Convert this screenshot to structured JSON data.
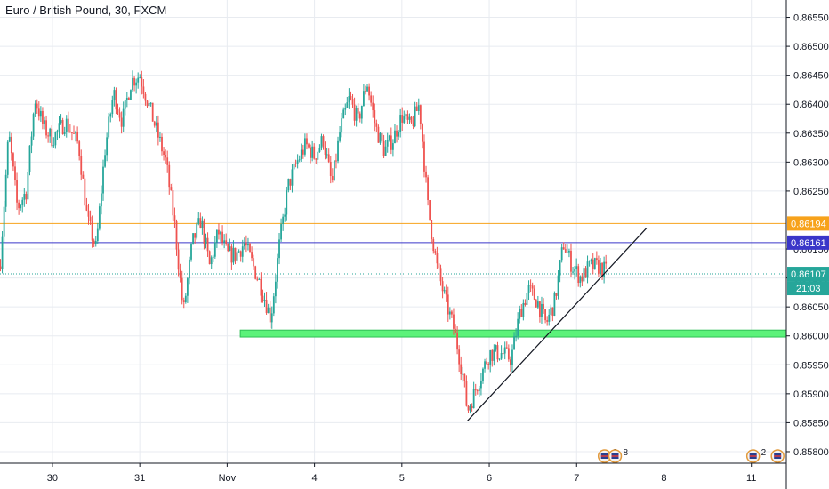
{
  "header": {
    "title": "Euro / British Pound, 30, FXCM"
  },
  "colors": {
    "up": "#26a69a",
    "down": "#ef5350",
    "grid": "#e8ebf0",
    "axis": "#131722",
    "orange_line": "#f7a21b",
    "blue_line": "#3a36c9",
    "green_zone": "#5cf27a",
    "current_price": "#26a69a",
    "trendline": "#131722"
  },
  "chart_data": {
    "type": "candlestick",
    "y_axis": {
      "min": 0.8578,
      "max": 0.8658,
      "ticks": [
        "0.86550",
        "0.86500",
        "0.86450",
        "0.86400",
        "0.86350",
        "0.86300",
        "0.86250",
        "0.86200",
        "0.86150",
        "0.86100",
        "0.86050",
        "0.86000",
        "0.85950",
        "0.85900",
        "0.85850",
        "0.85800"
      ],
      "tick_values": [
        0.8655,
        0.865,
        0.8645,
        0.864,
        0.8635,
        0.863,
        0.8625,
        0.862,
        0.8615,
        0.861,
        0.8605,
        0.86,
        0.8595,
        0.859,
        0.8585,
        0.858
      ]
    },
    "x_axis": {
      "labels": [
        {
          "text": "30",
          "t": 0.6
        },
        {
          "text": "31",
          "t": 1.6
        },
        {
          "text": "Nov",
          "t": 2.6
        },
        {
          "text": "4",
          "t": 3.6
        },
        {
          "text": "5",
          "t": 4.6
        },
        {
          "text": "6",
          "t": 5.6
        },
        {
          "text": "7",
          "t": 6.6
        },
        {
          "text": "8",
          "t": 7.6
        },
        {
          "text": "11",
          "t": 8.6
        }
      ],
      "range": [
        0,
        9.0
      ]
    },
    "horizontal_lines": [
      {
        "name": "resistance-orange",
        "price": 0.86194,
        "label": "0.86194",
        "style": "orange"
      },
      {
        "name": "resistance-blue",
        "price": 0.86161,
        "label": "0.86161",
        "style": "blue"
      }
    ],
    "current_price": {
      "price": 0.86107,
      "label": "0.86107",
      "countdown": "21:03"
    },
    "support_zone": {
      "price_low": 0.85998,
      "price_high": 0.8601,
      "t_start": 2.75,
      "t_end": 9.0
    },
    "trendline": {
      "t1": 5.35,
      "p1": 0.85853,
      "t2": 7.4,
      "p2": 0.86186
    },
    "events": [
      {
        "t": 6.92,
        "count": "2"
      },
      {
        "t": 7.04,
        "count": "8"
      },
      {
        "t": 8.62,
        "count": "2"
      },
      {
        "t": 8.9,
        "count": ""
      }
    ],
    "anchors": [
      {
        "t": 0.0,
        "p": 0.8612
      },
      {
        "t": 0.1,
        "p": 0.8635
      },
      {
        "t": 0.2,
        "p": 0.8622
      },
      {
        "t": 0.3,
        "p": 0.8625
      },
      {
        "t": 0.4,
        "p": 0.8641
      },
      {
        "t": 0.5,
        "p": 0.8636
      },
      {
        "t": 0.6,
        "p": 0.8634
      },
      {
        "t": 0.75,
        "p": 0.8637
      },
      {
        "t": 0.9,
        "p": 0.8633
      },
      {
        "t": 1.0,
        "p": 0.862
      },
      {
        "t": 1.1,
        "p": 0.8615
      },
      {
        "t": 1.2,
        "p": 0.8632
      },
      {
        "t": 1.3,
        "p": 0.8642
      },
      {
        "t": 1.4,
        "p": 0.8637
      },
      {
        "t": 1.5,
        "p": 0.8644
      },
      {
        "t": 1.6,
        "p": 0.8645
      },
      {
        "t": 1.7,
        "p": 0.864
      },
      {
        "t": 1.8,
        "p": 0.8635
      },
      {
        "t": 1.9,
        "p": 0.863
      },
      {
        "t": 2.0,
        "p": 0.8619
      },
      {
        "t": 2.1,
        "p": 0.8604
      },
      {
        "t": 2.2,
        "p": 0.8616
      },
      {
        "t": 2.3,
        "p": 0.862
      },
      {
        "t": 2.4,
        "p": 0.8612
      },
      {
        "t": 2.5,
        "p": 0.8618
      },
      {
        "t": 2.6,
        "p": 0.8614
      },
      {
        "t": 2.7,
        "p": 0.8614
      },
      {
        "t": 2.8,
        "p": 0.8616
      },
      {
        "t": 2.9,
        "p": 0.8612
      },
      {
        "t": 3.0,
        "p": 0.8608
      },
      {
        "t": 3.1,
        "p": 0.8603
      },
      {
        "t": 3.2,
        "p": 0.8616
      },
      {
        "t": 3.3,
        "p": 0.8626
      },
      {
        "t": 3.4,
        "p": 0.863
      },
      {
        "t": 3.5,
        "p": 0.8633
      },
      {
        "t": 3.6,
        "p": 0.8631
      },
      {
        "t": 3.7,
        "p": 0.8634
      },
      {
        "t": 3.8,
        "p": 0.8626
      },
      {
        "t": 3.9,
        "p": 0.8636
      },
      {
        "t": 4.0,
        "p": 0.8641
      },
      {
        "t": 4.1,
        "p": 0.8637
      },
      {
        "t": 4.2,
        "p": 0.8644
      },
      {
        "t": 4.3,
        "p": 0.8636
      },
      {
        "t": 4.4,
        "p": 0.8632
      },
      {
        "t": 4.5,
        "p": 0.8634
      },
      {
        "t": 4.6,
        "p": 0.8638
      },
      {
        "t": 4.7,
        "p": 0.8636
      },
      {
        "t": 4.8,
        "p": 0.864
      },
      {
        "t": 4.9,
        "p": 0.8622
      },
      {
        "t": 5.0,
        "p": 0.8612
      },
      {
        "t": 5.1,
        "p": 0.8606
      },
      {
        "t": 5.2,
        "p": 0.8601
      },
      {
        "t": 5.3,
        "p": 0.8593
      },
      {
        "t": 5.35,
        "p": 0.8587
      },
      {
        "t": 5.45,
        "p": 0.8591
      },
      {
        "t": 5.6,
        "p": 0.8597
      },
      {
        "t": 5.75,
        "p": 0.8597
      },
      {
        "t": 5.85,
        "p": 0.8596
      },
      {
        "t": 5.95,
        "p": 0.8604
      },
      {
        "t": 6.05,
        "p": 0.8608
      },
      {
        "t": 6.15,
        "p": 0.8606
      },
      {
        "t": 6.25,
        "p": 0.8602
      },
      {
        "t": 6.35,
        "p": 0.8606
      },
      {
        "t": 6.45,
        "p": 0.8616
      },
      {
        "t": 6.55,
        "p": 0.8612
      },
      {
        "t": 6.65,
        "p": 0.861
      },
      {
        "t": 6.75,
        "p": 0.8612
      },
      {
        "t": 6.85,
        "p": 0.8612
      },
      {
        "t": 6.95,
        "p": 0.8611
      }
    ]
  }
}
